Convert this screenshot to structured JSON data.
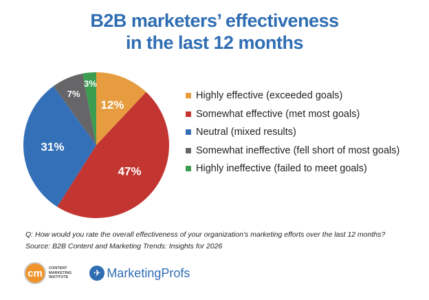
{
  "chart_data": {
    "type": "pie",
    "title": "B2B marketers’ effectiveness in the last 12 months",
    "title_lines": [
      "B2B marketers’ effectiveness",
      "in the last 12 months"
    ],
    "start": "top",
    "direction": "clockwise",
    "slices": [
      {
        "label": "Highly effective (exceeded goals)",
        "value": 12,
        "display": "12%",
        "color": "#e69c3f"
      },
      {
        "label": "Somewhat effective (met most goals)",
        "value": 47,
        "display": "47%",
        "color": "#c23531"
      },
      {
        "label": "Neutral (mixed results)",
        "value": 31,
        "display": "31%",
        "color": "#3470b8"
      },
      {
        "label": "Somewhat ineffective (fell short of most goals)",
        "value": 7,
        "display": "7%",
        "color": "#666669"
      },
      {
        "label": "Highly ineffective (failed to meet goals)",
        "value": 3,
        "display": "3%",
        "color": "#3c9c4f"
      }
    ],
    "legend_position": "right"
  },
  "footnote": {
    "question": "Q: How would you rate the overall effectiveness of your organization’s marketing efforts over the last 12 months?",
    "source": "Source: B2B Content and Marketing Trends: Insights for 2026"
  },
  "logos": {
    "cmi_mark": "cm",
    "cmi_text": [
      "CONTENT",
      "MARKETING",
      "INSTITUTE"
    ],
    "marketingprofs": "MarketingProfs"
  }
}
